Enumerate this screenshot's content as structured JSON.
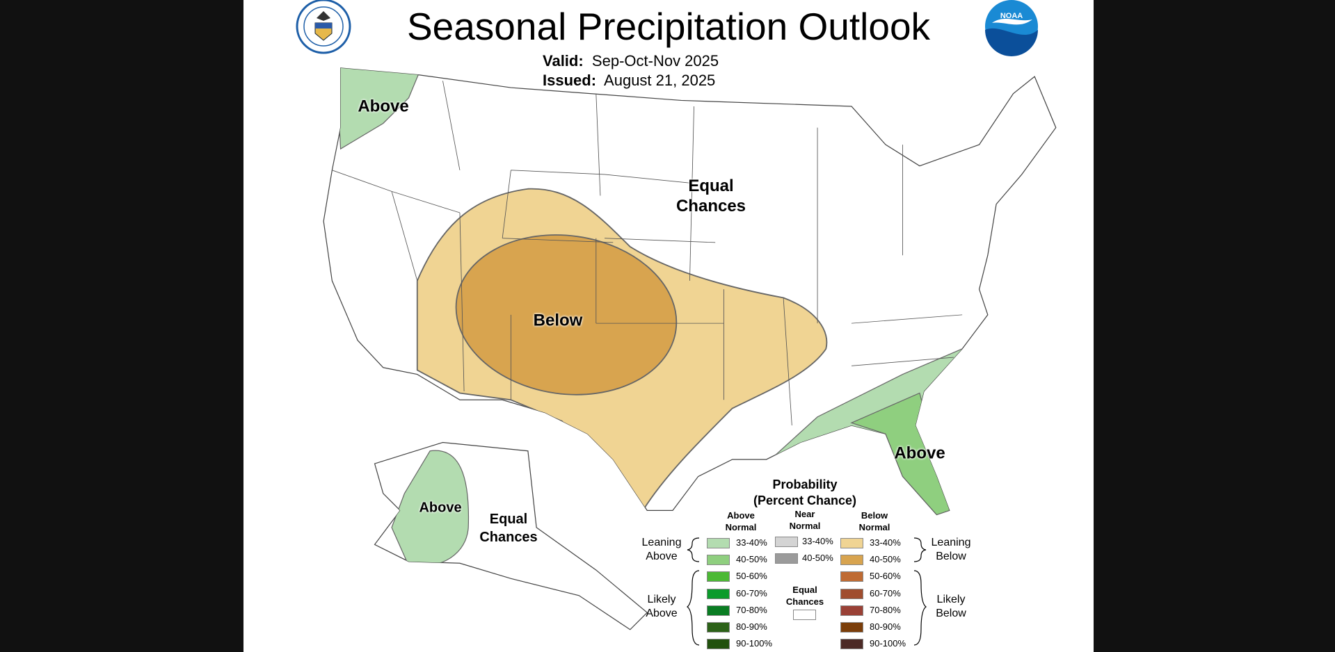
{
  "header": {
    "title": "Seasonal Precipitation Outlook",
    "valid_label": "Valid:",
    "valid_value": "Sep-Oct-Nov 2025",
    "issued_label": "Issued:",
    "issued_value": "August 21, 2025"
  },
  "logos": {
    "left": "Department of Commerce seal",
    "right": "NOAA"
  },
  "map_labels": {
    "wa_above": "Above",
    "conus_equal_1": "Equal",
    "conus_equal_2": "Chances",
    "below": "Below",
    "se_above": "Above",
    "ak_above": "Above",
    "ak_equal_1": "Equal",
    "ak_equal_2": "Chances"
  },
  "legend": {
    "title_1": "Probability",
    "title_2": "(Percent Chance)",
    "col_above_1": "Above",
    "col_above_2": "Normal",
    "col_near_1": "Near",
    "col_near_2": "Normal",
    "col_below_1": "Below",
    "col_below_2": "Normal",
    "leaning_above_1": "Leaning",
    "leaning_above_2": "Above",
    "likely_above_1": "Likely",
    "likely_above_2": "Above",
    "leaning_below_1": "Leaning",
    "leaning_below_2": "Below",
    "likely_below_1": "Likely",
    "likely_below_2": "Below",
    "equal_1": "Equal",
    "equal_2": "Chances",
    "above": [
      {
        "label": "33-40%",
        "color": "#b3dcb0"
      },
      {
        "label": "40-50%",
        "color": "#8fcf7f"
      },
      {
        "label": "50-60%",
        "color": "#4cb935"
      },
      {
        "label": "60-70%",
        "color": "#0b9b2b"
      },
      {
        "label": "70-80%",
        "color": "#0a7d23"
      },
      {
        "label": "80-90%",
        "color": "#2c6218"
      },
      {
        "label": "90-100%",
        "color": "#21510d"
      }
    ],
    "near": [
      {
        "label": "33-40%",
        "color": "#d4d4d4"
      },
      {
        "label": "40-50%",
        "color": "#9b9b9b"
      }
    ],
    "below": [
      {
        "label": "33-40%",
        "color": "#f0d493"
      },
      {
        "label": "40-50%",
        "color": "#d8a44f"
      },
      {
        "label": "50-60%",
        "color": "#bf6b33"
      },
      {
        "label": "60-70%",
        "color": "#a04d2e"
      },
      {
        "label": "70-80%",
        "color": "#9a4136"
      },
      {
        "label": "80-90%",
        "color": "#7b3e0a"
      },
      {
        "label": "90-100%",
        "color": "#4c2a26"
      }
    ]
  }
}
